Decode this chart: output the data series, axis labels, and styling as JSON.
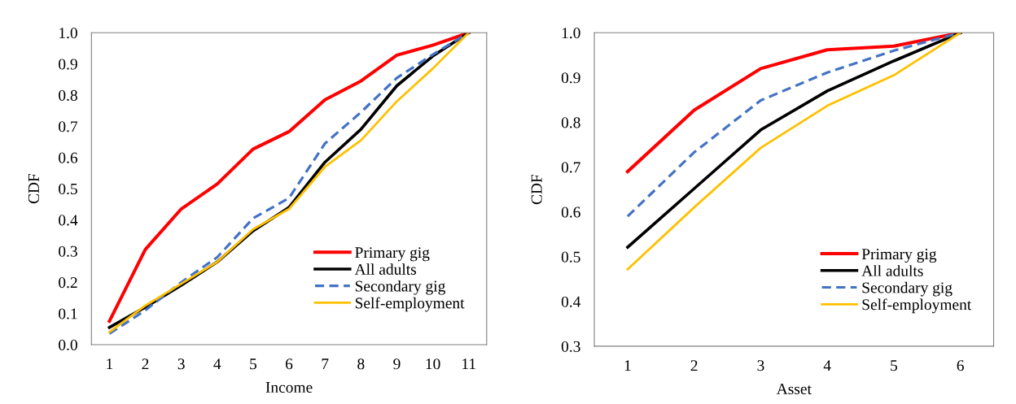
{
  "chart_data": [
    {
      "type": "line",
      "xlabel": "Income",
      "ylabel": "CDF",
      "categories": [
        "1",
        "2",
        "3",
        "4",
        "5",
        "6",
        "7",
        "8",
        "9",
        "10",
        "11"
      ],
      "ylim": [
        0,
        1
      ],
      "yticks": [
        {
          "value": 0,
          "label": "0.0"
        },
        {
          "value": 0.1,
          "label": "0.1"
        },
        {
          "value": 0.2,
          "label": "0.2"
        },
        {
          "value": 0.3,
          "label": "0.3"
        },
        {
          "value": 0.4,
          "label": "0.4"
        },
        {
          "value": 0.5,
          "label": "0.5"
        },
        {
          "value": 0.6,
          "label": "0.6"
        },
        {
          "value": 0.7,
          "label": "0.7"
        },
        {
          "value": 0.8,
          "label": "0.8"
        },
        {
          "value": 0.9,
          "label": "0.9"
        },
        {
          "value": 1,
          "label": "1.0"
        }
      ],
      "grid": false,
      "legend": "bottom right",
      "series": [
        {
          "name": "Primary gig",
          "color": "#ff0000",
          "line_style": "solid",
          "values": [
            0.075,
            0.305,
            0.435,
            0.515,
            0.627,
            0.683,
            0.785,
            0.845,
            0.928,
            0.96,
            1.0
          ]
        },
        {
          "name": "All adults",
          "color": "#000000",
          "line_style": "solid",
          "values": [
            0.055,
            0.12,
            0.19,
            0.265,
            0.365,
            0.44,
            0.585,
            0.69,
            0.83,
            0.925,
            1.0
          ]
        },
        {
          "name": "Secondary gig",
          "color": "#4472c4",
          "line_style": "dashed",
          "values": [
            0.035,
            0.11,
            0.2,
            0.28,
            0.405,
            0.47,
            0.645,
            0.745,
            0.855,
            0.93,
            1.0
          ]
        },
        {
          "name": "Self-employment",
          "color": "#ffc000",
          "line_style": "solid",
          "values": [
            0.04,
            0.125,
            0.195,
            0.265,
            0.37,
            0.435,
            0.57,
            0.655,
            0.78,
            0.885,
            1.0
          ]
        }
      ]
    },
    {
      "type": "line",
      "xlabel": "Asset",
      "ylabel": "CDF",
      "categories": [
        "1",
        "2",
        "3",
        "4",
        "5",
        "6"
      ],
      "ylim": [
        0.3,
        1
      ],
      "yticks": [
        {
          "value": 0.3,
          "label": "0.3"
        },
        {
          "value": 0.4,
          "label": "0.4"
        },
        {
          "value": 0.5,
          "label": "0.5"
        },
        {
          "value": 0.6,
          "label": "0.6"
        },
        {
          "value": 0.7,
          "label": "0.7"
        },
        {
          "value": 0.8,
          "label": "0.8"
        },
        {
          "value": 0.9,
          "label": "0.9"
        },
        {
          "value": 1,
          "label": "1.0"
        }
      ],
      "grid": false,
      "legend": "bottom right",
      "series": [
        {
          "name": "Primary gig",
          "color": "#ff0000",
          "line_style": "solid",
          "values": [
            0.69,
            0.827,
            0.92,
            0.962,
            0.97,
            1.0
          ]
        },
        {
          "name": "All adults",
          "color": "#000000",
          "line_style": "solid",
          "values": [
            0.521,
            0.652,
            0.783,
            0.87,
            0.937,
            1.0
          ]
        },
        {
          "name": "Secondary gig",
          "color": "#4472c4",
          "line_style": "dashed",
          "values": [
            0.59,
            0.733,
            0.849,
            0.911,
            0.96,
            1.0
          ]
        },
        {
          "name": "Self-employment",
          "color": "#ffc000",
          "line_style": "solid",
          "values": [
            0.472,
            0.61,
            0.743,
            0.837,
            0.905,
            1.0
          ]
        }
      ]
    }
  ]
}
